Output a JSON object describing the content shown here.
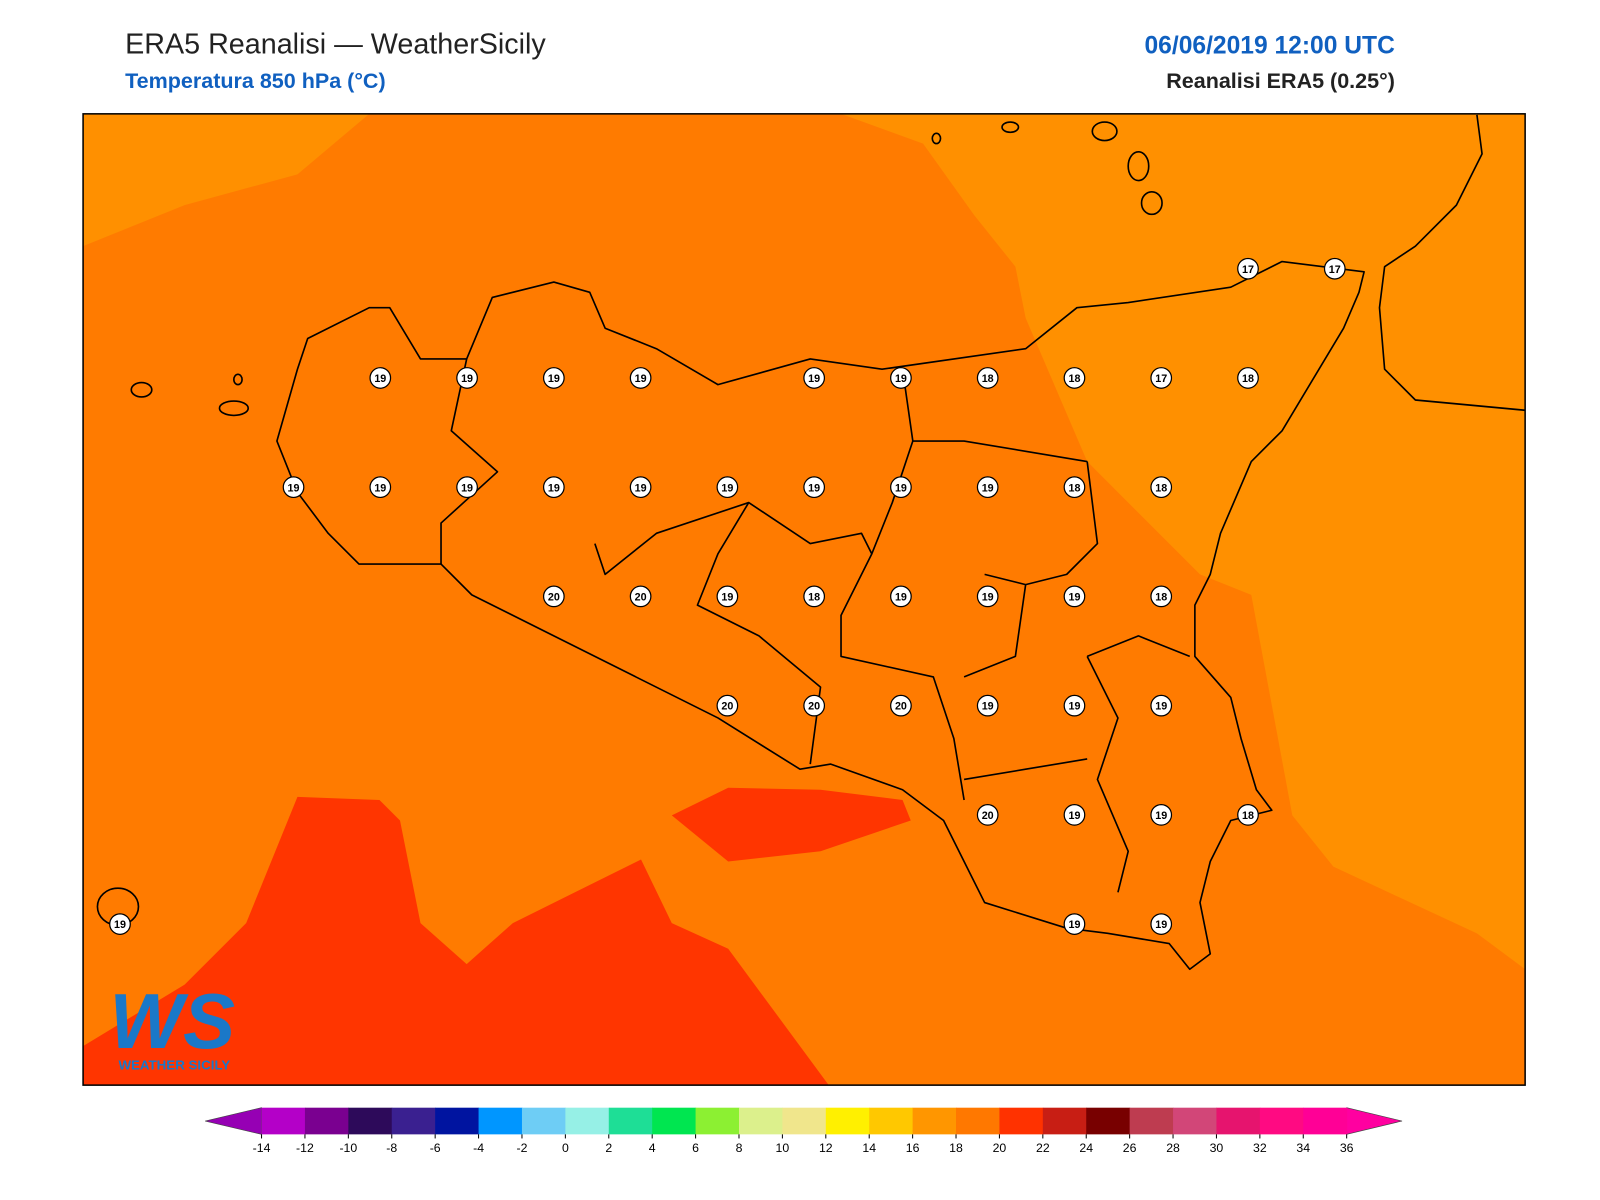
{
  "header": {
    "title": "ERA5 Reanalisi — WeatherSicily",
    "subtitle": "Temperatura 850 hPa (°C)",
    "datetime": "06/06/2019 12:00 UTC",
    "source": "Reanalisi ERA5 (0.25°)"
  },
  "stations": [
    [
      null,
      null,
      null,
      null,
      null,
      null,
      null,
      null,
      null,
      null,
      null,
      null,
      null,
      17,
      17
    ],
    [
      null,
      null,
      null,
      19,
      19,
      19,
      19,
      null,
      19,
      19,
      18,
      18,
      17,
      18,
      null
    ],
    [
      null,
      null,
      19,
      19,
      19,
      19,
      19,
      19,
      19,
      19,
      19,
      18,
      18,
      null,
      null
    ],
    [
      null,
      null,
      null,
      null,
      null,
      20,
      20,
      19,
      18,
      19,
      19,
      19,
      18,
      null,
      null
    ],
    [
      null,
      null,
      null,
      null,
      null,
      null,
      null,
      20,
      20,
      20,
      19,
      19,
      19,
      null,
      null
    ],
    [
      null,
      null,
      null,
      null,
      null,
      null,
      null,
      null,
      null,
      null,
      20,
      19,
      19,
      18,
      null
    ],
    [
      19,
      null,
      null,
      null,
      null,
      null,
      null,
      null,
      null,
      null,
      null,
      19,
      19,
      null,
      null
    ]
  ],
  "colorbar": {
    "ticks": [
      -14,
      -12,
      -10,
      -8,
      -6,
      -4,
      -2,
      0,
      2,
      4,
      6,
      8,
      10,
      12,
      14,
      16,
      18,
      20,
      22,
      24,
      26,
      28,
      30,
      32,
      34,
      36
    ],
    "colors": [
      "#b400c8",
      "#7a0090",
      "#2d0a5a",
      "#3a2090",
      "#0014a0",
      "#0096ff",
      "#6ecdf5",
      "#96f0e6",
      "#1ede96",
      "#00e650",
      "#8cf032",
      "#dcf08c",
      "#f0e68c",
      "#fff000",
      "#ffc800",
      "#ff9600",
      "#ff7800",
      "#ff3200",
      "#c81e14",
      "#780000",
      "#be3c50",
      "#d24678",
      "#e6146e",
      "#ff0a82",
      "#ff0096"
    ],
    "under": "#9600b4",
    "over": "#ff00a0"
  },
  "logo": {
    "mark": "WS",
    "text": "WEATHER SICILY"
  }
}
